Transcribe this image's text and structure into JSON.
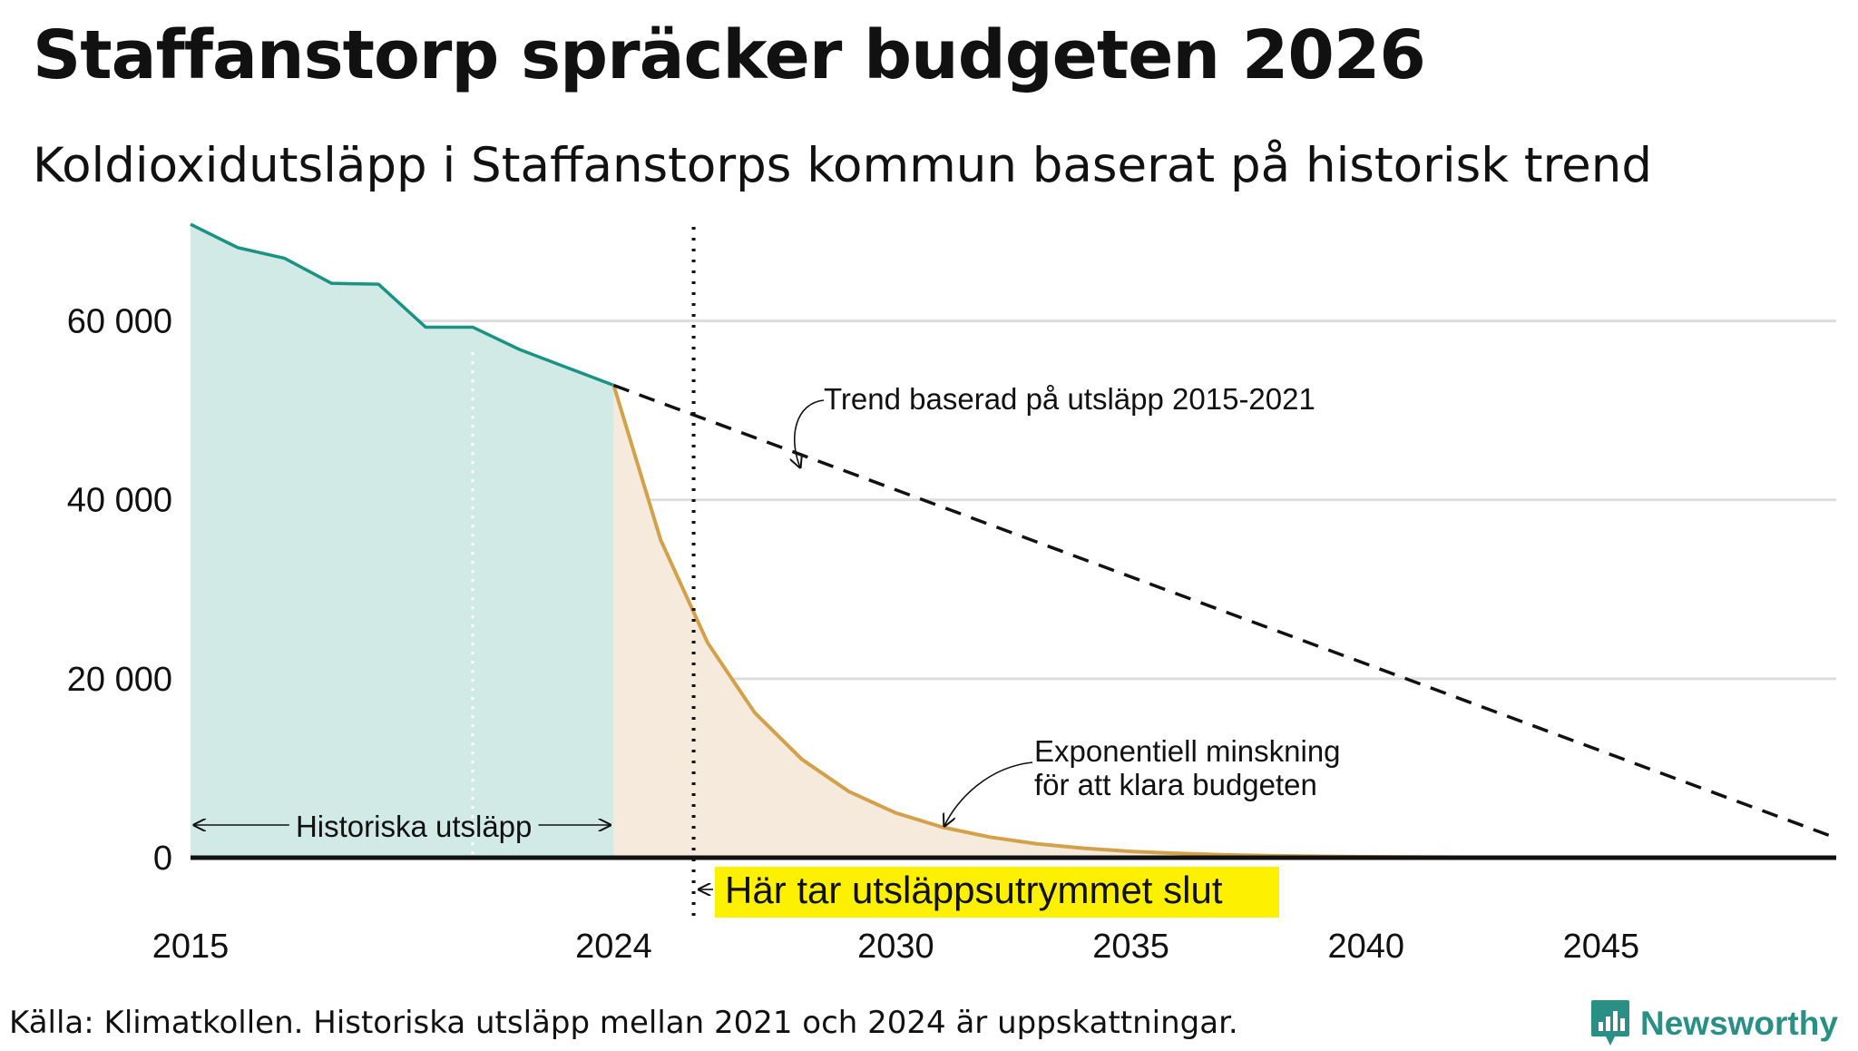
{
  "title": "Staffanstorp spräcker budgeten 2026",
  "subtitle": "Koldioxidutsläpp i Staffanstorps kommun baserat på historisk trend",
  "source": "Källa: Klimatkollen. Historiska utsläpp mellan 2021 och 2024 är uppskattningar.",
  "brand": "Newsworthy",
  "colors": {
    "historical": "#1a9384",
    "historical_fill": "#d1eae6",
    "budget": "#d3a14a",
    "budget_fill": "#f5eadb",
    "trend": "#111111",
    "highlight": "#fdf000",
    "grid": "#dddddd"
  },
  "chart_data": {
    "type": "area",
    "title": "Koldioxidutsläpp i Staffanstorps kommun baserat på historisk trend",
    "xlim": [
      2015,
      2050
    ],
    "ylim": [
      0,
      70000
    ],
    "x_ticks": [
      2015,
      2024,
      2030,
      2035,
      2040,
      2045
    ],
    "y_ticks": [
      0,
      20000,
      40000,
      60000
    ],
    "x_tick_labels": [
      "2015",
      "2024",
      "2030",
      "2035",
      "2040",
      "2045"
    ],
    "y_tick_labels": [
      "0",
      "20 000",
      "40 000",
      "60 000"
    ],
    "series": [
      {
        "name": "Historiska utsläpp",
        "x": [
          2015,
          2016,
          2017,
          2018,
          2019,
          2020,
          2021,
          2022,
          2023,
          2024
        ],
        "values": [
          70800,
          68200,
          67000,
          64200,
          64100,
          59300,
          59300,
          56800,
          54800,
          52800
        ]
      },
      {
        "name": "Exponentiell minskning för att klara budgeten",
        "x": [
          2024,
          2025,
          2026,
          2027,
          2028,
          2029,
          2030,
          2031,
          2032,
          2033,
          2034,
          2035,
          2036,
          2037,
          2038,
          2039,
          2040,
          2042,
          2044,
          2046,
          2048,
          2050
        ],
        "values": [
          52800,
          35500,
          24000,
          16200,
          11000,
          7400,
          5000,
          3400,
          2300,
          1550,
          1050,
          700,
          480,
          320,
          220,
          150,
          100,
          45,
          20,
          10,
          5,
          2
        ]
      },
      {
        "name": "Trend baserad på utsläpp 2015-2021",
        "x": [
          2024,
          2050
        ],
        "values": [
          52800,
          2200
        ]
      }
    ],
    "vertical_markers": [
      {
        "x": 2021,
        "style": "dotted-white"
      },
      {
        "x": 2025.7,
        "style": "dotted-black"
      }
    ],
    "annotations": {
      "historical_span": "Historiska utsläpp",
      "trend_label": "Trend baserad på utsläpp 2015-2021",
      "exp_label_line1": "Exponentiell minskning",
      "exp_label_line2": "för att klara budgeten",
      "budget_end": "Här tar utsläppsutrymmet slut"
    }
  }
}
